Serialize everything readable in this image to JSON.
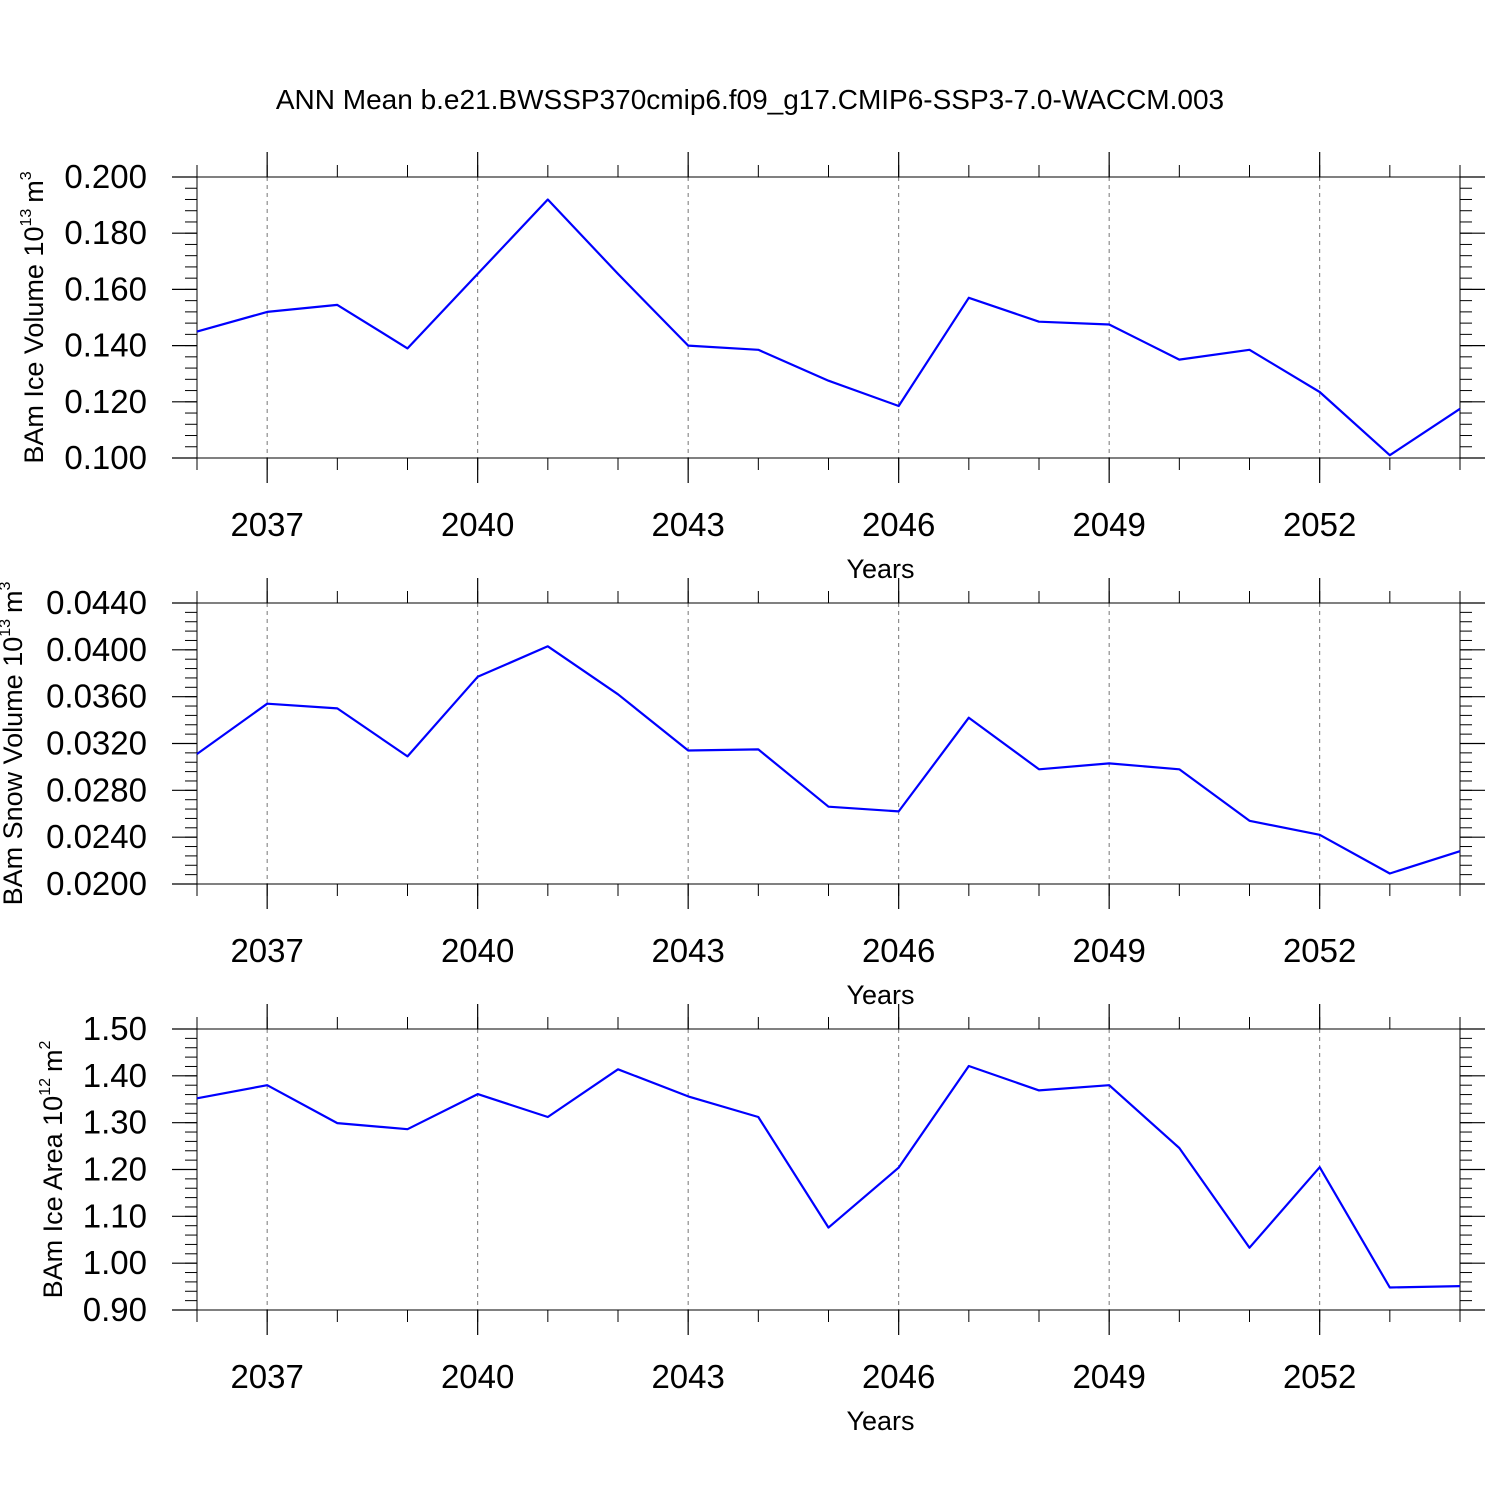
{
  "title": "ANN Mean b.e21.BWSSP370cmip6.f09_g17.CMIP6-SSP3-7.0-WACCM.003",
  "chart_data": [
    {
      "type": "line",
      "ylabel": "BAm Ice Volume 10",
      "ylabel_sup": "13",
      "ylabel_unit": "m",
      "ylabel_unit_sup": "3",
      "xlabel": "Years",
      "xlim": [
        2036,
        2054
      ],
      "ylim": [
        0.1,
        0.2
      ],
      "xticks": [
        "2037",
        "2040",
        "2043",
        "2046",
        "2049",
        "2052"
      ],
      "yticks": [
        "0.100",
        "0.120",
        "0.140",
        "0.160",
        "0.180",
        "0.200"
      ],
      "line_color": "#0000ff",
      "grid": "vertical dashed at major x ticks",
      "x": [
        2036,
        2037,
        2038,
        2039,
        2040,
        2041,
        2042,
        2043,
        2044,
        2045,
        2046,
        2047,
        2048,
        2049,
        2050,
        2051,
        2052,
        2053,
        2054
      ],
      "values": [
        0.145,
        0.152,
        0.1545,
        0.139,
        0.1655,
        0.192,
        0.1655,
        0.14,
        0.1385,
        0.1275,
        0.1185,
        0.157,
        0.1485,
        0.1475,
        0.135,
        0.1385,
        0.1235,
        0.101,
        0.1175
      ]
    },
    {
      "type": "line",
      "ylabel": "BAm Snow Volume 10",
      "ylabel_sup": "13",
      "ylabel_unit": "m",
      "ylabel_unit_sup": "3",
      "xlabel": "Years",
      "xlim": [
        2036,
        2054
      ],
      "ylim": [
        0.02,
        0.044
      ],
      "xticks": [
        "2037",
        "2040",
        "2043",
        "2046",
        "2049",
        "2052"
      ],
      "yticks": [
        "0.0200",
        "0.0240",
        "0.0280",
        "0.0320",
        "0.0360",
        "0.0400",
        "0.0440"
      ],
      "line_color": "#0000ff",
      "grid": "vertical dashed at major x ticks",
      "x": [
        2036,
        2037,
        2038,
        2039,
        2040,
        2041,
        2042,
        2043,
        2044,
        2045,
        2046,
        2047,
        2048,
        2049,
        2050,
        2051,
        2052,
        2053,
        2054
      ],
      "values": [
        0.0311,
        0.0354,
        0.035,
        0.0309,
        0.0377,
        0.0403,
        0.0362,
        0.0314,
        0.0315,
        0.0266,
        0.0262,
        0.0342,
        0.0298,
        0.0303,
        0.0298,
        0.0254,
        0.0242,
        0.0209,
        0.0228
      ]
    },
    {
      "type": "line",
      "ylabel": "BAm Ice Area 10",
      "ylabel_sup": "12",
      "ylabel_unit": "m",
      "ylabel_unit_sup": "2",
      "xlabel": "Years",
      "xlim": [
        2036,
        2054
      ],
      "ylim": [
        0.9,
        1.5
      ],
      "xticks": [
        "2037",
        "2040",
        "2043",
        "2046",
        "2049",
        "2052"
      ],
      "yticks": [
        "0.90",
        "1.00",
        "1.10",
        "1.20",
        "1.30",
        "1.40",
        "1.50"
      ],
      "line_color": "#0000ff",
      "grid": "vertical dashed at major x ticks",
      "x": [
        2036,
        2037,
        2038,
        2039,
        2040,
        2041,
        2042,
        2043,
        2044,
        2045,
        2046,
        2047,
        2048,
        2049,
        2050,
        2051,
        2052,
        2053,
        2054
      ],
      "values": [
        1.352,
        1.38,
        1.299,
        1.286,
        1.361,
        1.312,
        1.414,
        1.356,
        1.312,
        1.076,
        1.204,
        1.421,
        1.369,
        1.38,
        1.246,
        1.033,
        1.205,
        0.948,
        0.951
      ]
    }
  ]
}
